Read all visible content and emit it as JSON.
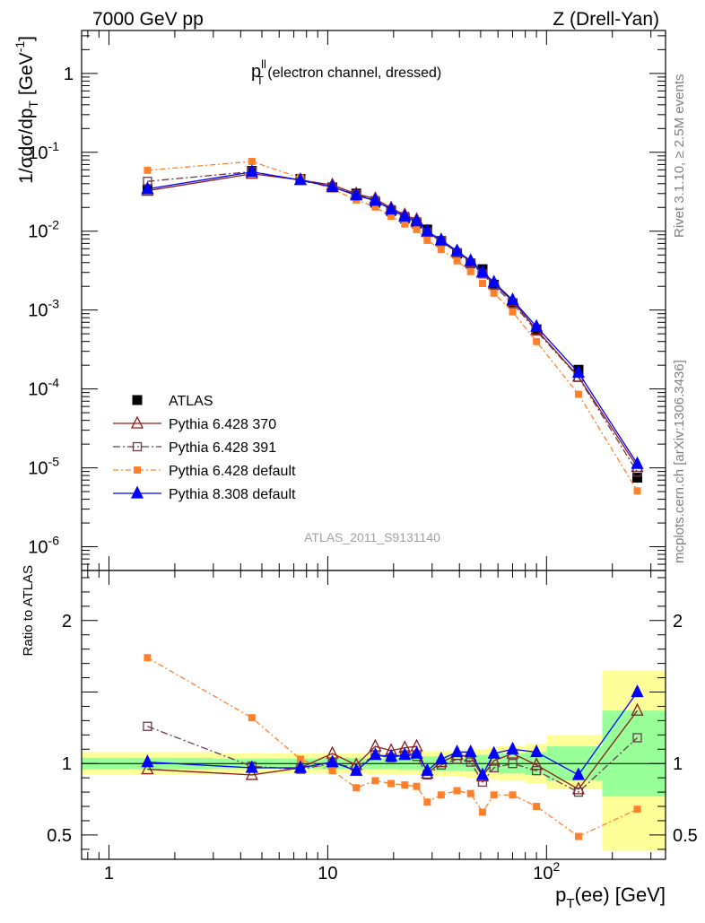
{
  "header": {
    "left": "7000 GeV pp",
    "right": "Z (Drell-Yan)"
  },
  "side_labels": {
    "rivet": "Rivet 3.1.10, ≥ 2.5M events",
    "mcplots": "mcplots.cern.ch [arXiv:1306.3436]"
  },
  "plot_title": {
    "main": "p",
    "sup": "ll",
    "sub": "T",
    "rest": " (electron channel, dressed)"
  },
  "watermark": "ATLAS_2011_S9131140",
  "ylabel_main": {
    "pre": "1/σdσ/dp",
    "sub": "T",
    "mid": " [GeV",
    "sup": "-1",
    "post": "]"
  },
  "ylabel_ratio": "Ratio to ATLAS",
  "xlabel": {
    "pre": "p",
    "sub": "T",
    "post": "(ee) [GeV]"
  },
  "colors": {
    "atlas": "#000000",
    "p370": "#8b1a1a",
    "p391": "#6b3a4a",
    "pdef": "#ff7f2a",
    "p8": "#0000ff",
    "band_inner": "#99ff99",
    "band_outer": "#ffff99"
  },
  "legend": [
    {
      "key": "atlas",
      "label": "ATLAS"
    },
    {
      "key": "p370",
      "label": "Pythia 6.428 370"
    },
    {
      "key": "p391",
      "label": "Pythia 6.428 391"
    },
    {
      "key": "pdef",
      "label": "Pythia 6.428 default"
    },
    {
      "key": "p8",
      "label": "Pythia 8.308 default"
    }
  ],
  "chart_data": {
    "type": "scatter",
    "x_scale": "log",
    "y_scale_main": "log",
    "xlim": [
      0.75,
      350
    ],
    "ylim_main": [
      5e-07,
      3.5
    ],
    "ylim_ratio": [
      0.33,
      2.35
    ],
    "x_ticks": [
      {
        "v": 1,
        "label": "1"
      },
      {
        "v": 10,
        "label": "10"
      },
      {
        "v": 100,
        "label": "10",
        "sup": "2"
      }
    ],
    "y_ticks_main": [
      {
        "v": 1,
        "label": "1"
      },
      {
        "v": 0.1,
        "label": "10",
        "sup": "-1"
      },
      {
        "v": 0.01,
        "label": "10",
        "sup": "-2"
      },
      {
        "v": 0.001,
        "label": "10",
        "sup": "-3"
      },
      {
        "v": 0.0001,
        "label": "10",
        "sup": "-4"
      },
      {
        "v": 1e-05,
        "label": "10",
        "sup": "-5"
      },
      {
        "v": 1e-06,
        "label": "10",
        "sup": "-6"
      }
    ],
    "y_ticks_ratio": [
      {
        "v": 0.5,
        "label": "0.5"
      },
      {
        "v": 1,
        "label": "1"
      },
      {
        "v": 2,
        "label": "2"
      }
    ],
    "x": [
      1.5,
      4.5,
      7.5,
      10.5,
      13.5,
      16.5,
      19.5,
      22.5,
      25.5,
      28.5,
      33,
      39,
      45,
      51,
      57.5,
      70,
      90,
      140,
      260
    ],
    "bins": [
      [
        0,
        3
      ],
      [
        3,
        6
      ],
      [
        6,
        9
      ],
      [
        9,
        12
      ],
      [
        12,
        15
      ],
      [
        15,
        18
      ],
      [
        18,
        21
      ],
      [
        21,
        24
      ],
      [
        24,
        27
      ],
      [
        27,
        30
      ],
      [
        30,
        36
      ],
      [
        36,
        42
      ],
      [
        42,
        48
      ],
      [
        48,
        54
      ],
      [
        54,
        60
      ],
      [
        60,
        80
      ],
      [
        80,
        100
      ],
      [
        100,
        180
      ],
      [
        180,
        350
      ]
    ],
    "atlas": [
      0.034,
      0.058,
      0.046,
      0.036,
      0.03,
      0.023,
      0.018,
      0.0145,
      0.0125,
      0.0105,
      0.0075,
      0.0052,
      0.0039,
      0.0033,
      0.0021,
      0.00122,
      0.00057,
      0.000175,
      7.5e-06
    ],
    "band_inner": [
      [
        0.96,
        1.04
      ],
      [
        0.965,
        1.035
      ],
      [
        0.965,
        1.035
      ],
      [
        0.96,
        1.04
      ],
      [
        0.96,
        1.04
      ],
      [
        0.96,
        1.04
      ],
      [
        0.96,
        1.04
      ],
      [
        0.955,
        1.045
      ],
      [
        0.955,
        1.045
      ],
      [
        0.95,
        1.05
      ],
      [
        0.95,
        1.05
      ],
      [
        0.95,
        1.05
      ],
      [
        0.945,
        1.055
      ],
      [
        0.94,
        1.06
      ],
      [
        0.94,
        1.06
      ],
      [
        0.93,
        1.07
      ],
      [
        0.92,
        1.08
      ],
      [
        0.88,
        1.12
      ],
      [
        0.77,
        1.37
      ]
    ],
    "band_outer": [
      [
        0.92,
        1.08
      ],
      [
        0.93,
        1.07
      ],
      [
        0.93,
        1.07
      ],
      [
        0.93,
        1.07
      ],
      [
        0.93,
        1.07
      ],
      [
        0.925,
        1.075
      ],
      [
        0.925,
        1.075
      ],
      [
        0.92,
        1.08
      ],
      [
        0.92,
        1.08
      ],
      [
        0.915,
        1.085
      ],
      [
        0.91,
        1.09
      ],
      [
        0.91,
        1.09
      ],
      [
        0.9,
        1.1
      ],
      [
        0.9,
        1.1
      ],
      [
        0.89,
        1.11
      ],
      [
        0.88,
        1.12
      ],
      [
        0.86,
        1.14
      ],
      [
        0.82,
        1.2
      ],
      [
        0.39,
        1.65
      ]
    ],
    "series": [
      {
        "key": "p370",
        "marker": "triangle-open",
        "dash": "",
        "ratio": [
          0.96,
          0.92,
          0.97,
          1.07,
          0.99,
          1.12,
          1.09,
          1.11,
          1.12,
          0.93,
          1.01,
          1.06,
          1.05,
          0.91,
          1.02,
          1.07,
          0.99,
          0.82,
          1.37
        ]
      },
      {
        "key": "p391",
        "marker": "square-open",
        "dash": "8,3,2,3",
        "ratio": [
          1.26,
          0.98,
          0.96,
          1.0,
          0.97,
          1.06,
          1.04,
          1.06,
          1.05,
          0.92,
          0.99,
          1.03,
          1.01,
          0.87,
          0.97,
          1.0,
          0.95,
          0.8,
          1.18
        ]
      },
      {
        "key": "pdef",
        "marker": "square-filled",
        "dash": "6,3,2,3",
        "ratio": [
          1.74,
          1.32,
          1.03,
          0.95,
          0.83,
          0.88,
          0.86,
          0.85,
          0.84,
          0.73,
          0.78,
          0.81,
          0.79,
          0.66,
          0.78,
          0.78,
          0.7,
          0.49,
          0.68
        ]
      },
      {
        "key": "p8",
        "marker": "triangle-filled",
        "dash": "",
        "ratio": [
          1.01,
          0.97,
          0.97,
          1.01,
          0.95,
          1.06,
          1.05,
          1.06,
          1.07,
          0.95,
          1.03,
          1.08,
          1.08,
          0.92,
          1.07,
          1.1,
          1.08,
          0.92,
          1.5
        ]
      }
    ]
  }
}
